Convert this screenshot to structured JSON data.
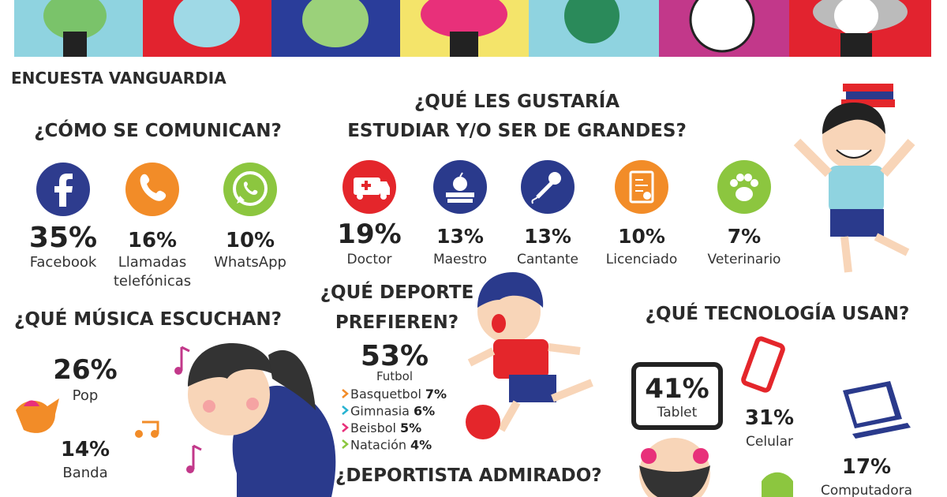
{
  "header": {
    "label": "ENCUESTA VANGUARDIA"
  },
  "communication": {
    "title": "¿CÓMO SE COMUNICAN?",
    "items": [
      {
        "value": "35%",
        "label_lines": [
          "Facebook"
        ]
      },
      {
        "value": "16%",
        "label_lines": [
          "Llamadas",
          "telefónicas"
        ]
      },
      {
        "value": "10%",
        "label_lines": [
          "WhatsApp"
        ]
      }
    ]
  },
  "careers": {
    "title_lines": [
      "¿QUÉ LES GUSTARÍA",
      "ESTUDIAR Y/O SER DE GRANDES?"
    ],
    "items": [
      {
        "value": "19%",
        "label": "Doctor"
      },
      {
        "value": "13%",
        "label": "Maestro"
      },
      {
        "value": "13%",
        "label": "Cantante"
      },
      {
        "value": "10%",
        "label": "Licenciado"
      },
      {
        "value": "7%",
        "label": "Veterinario"
      }
    ]
  },
  "music": {
    "title": "¿QUÉ MÚSICA ESCUCHAN?",
    "items": [
      {
        "value": "26%",
        "label": "Pop"
      },
      {
        "value": "14%",
        "label": "Banda"
      }
    ]
  },
  "sports": {
    "title_lines": [
      "¿QUÉ DEPORTE",
      "PREFIEREN?"
    ],
    "top": {
      "value": "53%",
      "label": "Futbol"
    },
    "others": [
      {
        "label": "Basquetbol",
        "value": "7%"
      },
      {
        "label": "Gimnasia",
        "value": "6%"
      },
      {
        "label": "Beisbol",
        "value": "5%"
      },
      {
        "label": "Natación",
        "value": "4%"
      }
    ]
  },
  "athlete": {
    "title": "¿DEPORTISTA ADMIRADO?"
  },
  "technology": {
    "title": "¿QUÉ TECNOLOGÍA USAN?",
    "items": [
      {
        "value": "41%",
        "label": "Tablet"
      },
      {
        "value": "31%",
        "label": "Celular"
      },
      {
        "value": "17%",
        "label": "Computadora"
      }
    ]
  }
}
